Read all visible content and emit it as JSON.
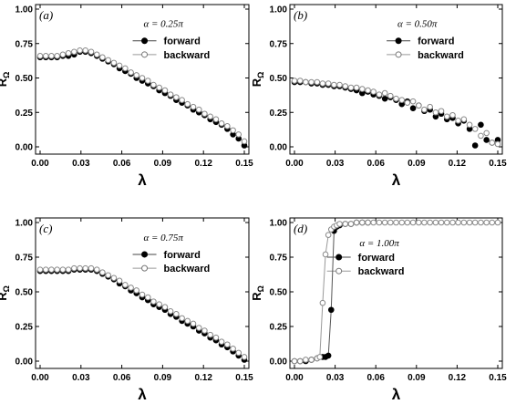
{
  "figure": {
    "legend_labels": [
      "forward",
      "backward"
    ],
    "x_tick_labels": [
      "0.00",
      "0.03",
      "0.06",
      "0.09",
      "0.12",
      "0.15"
    ],
    "y_tick_labels": [
      "0.00",
      "0.25",
      "0.50",
      "0.75",
      "1.00"
    ],
    "xlabel": "λ",
    "ylabel_main": "R",
    "ylabel_sub": "Ω"
  },
  "chart_data": [
    {
      "type": "scatter",
      "panel_label": "(a)",
      "alpha_label": "α = 0.25π",
      "xlabel": "λ",
      "ylabel": "RΩ",
      "xlim": [
        0,
        0.15
      ],
      "ylim": [
        0,
        1
      ],
      "legend_position": "top-right",
      "series": [
        {
          "name": "forward",
          "marker": "filled-circle",
          "x": [
            0.0,
            0.0042,
            0.0083,
            0.0125,
            0.0167,
            0.0208,
            0.025,
            0.0292,
            0.0333,
            0.0375,
            0.0417,
            0.0458,
            0.05,
            0.0542,
            0.0583,
            0.0625,
            0.0667,
            0.0708,
            0.075,
            0.0792,
            0.0833,
            0.0875,
            0.0917,
            0.0958,
            0.1,
            0.1042,
            0.1083,
            0.1125,
            0.1167,
            0.1208,
            0.125,
            0.1292,
            0.1333,
            0.1375,
            0.1417,
            0.1458,
            0.15
          ],
          "y": [
            0.65,
            0.65,
            0.65,
            0.65,
            0.66,
            0.66,
            0.67,
            0.69,
            0.69,
            0.68,
            0.66,
            0.64,
            0.62,
            0.6,
            0.57,
            0.55,
            0.53,
            0.5,
            0.48,
            0.46,
            0.44,
            0.41,
            0.39,
            0.37,
            0.34,
            0.32,
            0.3,
            0.27,
            0.25,
            0.23,
            0.2,
            0.18,
            0.16,
            0.13,
            0.09,
            0.06,
            0.01
          ]
        },
        {
          "name": "backward",
          "marker": "open-circle",
          "x": [
            0.0,
            0.0042,
            0.0083,
            0.0125,
            0.0167,
            0.0208,
            0.025,
            0.0292,
            0.0333,
            0.0375,
            0.0417,
            0.0458,
            0.05,
            0.0542,
            0.0583,
            0.0625,
            0.0667,
            0.0708,
            0.075,
            0.0792,
            0.0833,
            0.0875,
            0.0917,
            0.0958,
            0.1,
            0.1042,
            0.1083,
            0.1125,
            0.1167,
            0.1208,
            0.125,
            0.1292,
            0.1333,
            0.1375,
            0.1417,
            0.1458,
            0.15
          ],
          "y": [
            0.66,
            0.66,
            0.66,
            0.66,
            0.67,
            0.68,
            0.69,
            0.7,
            0.7,
            0.69,
            0.67,
            0.65,
            0.63,
            0.61,
            0.59,
            0.57,
            0.54,
            0.52,
            0.5,
            0.48,
            0.45,
            0.43,
            0.41,
            0.38,
            0.36,
            0.34,
            0.31,
            0.29,
            0.27,
            0.24,
            0.22,
            0.2,
            0.17,
            0.15,
            0.12,
            0.09,
            0.04
          ]
        }
      ]
    },
    {
      "type": "scatter",
      "panel_label": "(b)",
      "alpha_label": "α = 0.50π",
      "xlabel": "λ",
      "ylabel": "RΩ",
      "xlim": [
        0,
        0.15
      ],
      "ylim": [
        0,
        1
      ],
      "legend_position": "top-right",
      "series": [
        {
          "name": "forward",
          "marker": "filled-circle",
          "x": [
            0.0,
            0.0042,
            0.0083,
            0.0125,
            0.0167,
            0.0208,
            0.025,
            0.0292,
            0.0333,
            0.0375,
            0.0417,
            0.0458,
            0.05,
            0.0542,
            0.0583,
            0.0625,
            0.0667,
            0.0708,
            0.075,
            0.0792,
            0.0833,
            0.0875,
            0.0917,
            0.0958,
            0.1,
            0.1042,
            0.1083,
            0.1125,
            0.1167,
            0.1208,
            0.125,
            0.1292,
            0.1333,
            0.1375,
            0.1417,
            0.1458,
            0.15
          ],
          "y": [
            0.47,
            0.47,
            0.47,
            0.46,
            0.46,
            0.45,
            0.45,
            0.44,
            0.44,
            0.43,
            0.42,
            0.41,
            0.39,
            0.4,
            0.38,
            0.37,
            0.35,
            0.36,
            0.34,
            0.31,
            0.33,
            0.28,
            0.3,
            0.26,
            0.27,
            0.22,
            0.24,
            0.2,
            0.21,
            0.17,
            0.19,
            0.13,
            0.01,
            0.16,
            0.05,
            0.03,
            0.05
          ]
        },
        {
          "name": "backward",
          "marker": "open-circle",
          "x": [
            0.0,
            0.0042,
            0.0083,
            0.0125,
            0.0167,
            0.0208,
            0.025,
            0.0292,
            0.0333,
            0.0375,
            0.0417,
            0.0458,
            0.05,
            0.0542,
            0.0583,
            0.0625,
            0.0667,
            0.0708,
            0.075,
            0.0792,
            0.0833,
            0.0875,
            0.0917,
            0.0958,
            0.1,
            0.1042,
            0.1083,
            0.1125,
            0.1167,
            0.1208,
            0.125,
            0.1292,
            0.1333,
            0.1375,
            0.1417,
            0.1458,
            0.15
          ],
          "y": [
            0.48,
            0.48,
            0.47,
            0.47,
            0.47,
            0.46,
            0.46,
            0.45,
            0.45,
            0.44,
            0.43,
            0.43,
            0.42,
            0.41,
            0.4,
            0.38,
            0.39,
            0.37,
            0.35,
            0.34,
            0.32,
            0.33,
            0.3,
            0.27,
            0.29,
            0.25,
            0.26,
            0.22,
            0.23,
            0.19,
            0.2,
            0.16,
            0.13,
            0.08,
            0.1,
            0.03,
            0.02
          ]
        }
      ]
    },
    {
      "type": "scatter",
      "panel_label": "(c)",
      "alpha_label": "α = 0.75π",
      "xlabel": "λ",
      "ylabel": "RΩ",
      "xlim": [
        0,
        0.15
      ],
      "ylim": [
        0,
        1
      ],
      "legend_position": "top-right",
      "series": [
        {
          "name": "forward",
          "marker": "filled-circle",
          "x": [
            0.0,
            0.0042,
            0.0083,
            0.0125,
            0.0167,
            0.0208,
            0.025,
            0.0292,
            0.0333,
            0.0375,
            0.0417,
            0.0458,
            0.05,
            0.0542,
            0.0583,
            0.0625,
            0.0667,
            0.0708,
            0.075,
            0.0792,
            0.0833,
            0.0875,
            0.0917,
            0.0958,
            0.1,
            0.1042,
            0.1083,
            0.1125,
            0.1167,
            0.1208,
            0.125,
            0.1292,
            0.1333,
            0.1375,
            0.1417,
            0.1458,
            0.15
          ],
          "y": [
            0.65,
            0.65,
            0.65,
            0.65,
            0.65,
            0.65,
            0.66,
            0.66,
            0.66,
            0.66,
            0.65,
            0.63,
            0.61,
            0.59,
            0.56,
            0.54,
            0.51,
            0.49,
            0.46,
            0.44,
            0.41,
            0.39,
            0.37,
            0.34,
            0.32,
            0.29,
            0.27,
            0.25,
            0.22,
            0.2,
            0.17,
            0.15,
            0.12,
            0.1,
            0.07,
            0.04,
            0.01
          ]
        },
        {
          "name": "backward",
          "marker": "open-circle",
          "x": [
            0.0,
            0.0042,
            0.0083,
            0.0125,
            0.0167,
            0.0208,
            0.025,
            0.0292,
            0.0333,
            0.0375,
            0.0417,
            0.0458,
            0.05,
            0.0542,
            0.0583,
            0.0625,
            0.0667,
            0.0708,
            0.075,
            0.0792,
            0.0833,
            0.0875,
            0.0917,
            0.0958,
            0.1,
            0.1042,
            0.1083,
            0.1125,
            0.1167,
            0.1208,
            0.125,
            0.1292,
            0.1333,
            0.1375,
            0.1417,
            0.1458,
            0.15
          ],
          "y": [
            0.66,
            0.66,
            0.66,
            0.66,
            0.66,
            0.66,
            0.67,
            0.67,
            0.67,
            0.67,
            0.66,
            0.64,
            0.62,
            0.6,
            0.58,
            0.55,
            0.53,
            0.51,
            0.48,
            0.46,
            0.43,
            0.41,
            0.39,
            0.36,
            0.34,
            0.31,
            0.29,
            0.27,
            0.24,
            0.22,
            0.19,
            0.17,
            0.14,
            0.12,
            0.09,
            0.06,
            0.03
          ]
        }
      ]
    },
    {
      "type": "line",
      "panel_label": "(d)",
      "alpha_label": "α = 1.00π",
      "xlabel": "λ",
      "ylabel": "RΩ",
      "xlim": [
        0,
        0.15
      ],
      "ylim": [
        0,
        1
      ],
      "legend_position": "center-right",
      "series": [
        {
          "name": "forward",
          "marker": "filled-circle",
          "line_color": "#555555",
          "x": [
            0.0,
            0.0042,
            0.0083,
            0.0125,
            0.0167,
            0.0208,
            0.0229,
            0.025,
            0.0271,
            0.0292,
            0.0312,
            0.0333,
            0.0375,
            0.0417,
            0.0458,
            0.05,
            0.0542
          ],
          "y": [
            0.0,
            0.0,
            0.0,
            0.01,
            0.02,
            0.03,
            0.03,
            0.04,
            0.37,
            0.94,
            0.97,
            0.98,
            0.99,
            0.99,
            1.0,
            1.0,
            1.0
          ]
        },
        {
          "name": "backward",
          "marker": "open-circle",
          "line_color": "#999999",
          "x": [
            0.0,
            0.0042,
            0.0083,
            0.0125,
            0.0167,
            0.0187,
            0.0208,
            0.0229,
            0.025,
            0.0271,
            0.0292,
            0.0312,
            0.0333,
            0.0375,
            0.0417,
            0.0458,
            0.05,
            0.0542,
            0.0583,
            0.0625,
            0.0667,
            0.0708,
            0.075,
            0.0792,
            0.0833,
            0.0875,
            0.0917,
            0.0958,
            0.1,
            0.1042,
            0.1083,
            0.1125,
            0.1167,
            0.1208,
            0.125,
            0.1292,
            0.1333,
            0.1375,
            0.1417,
            0.1458,
            0.15
          ],
          "y": [
            0.0,
            0.0,
            0.01,
            0.01,
            0.02,
            0.03,
            0.42,
            0.77,
            0.91,
            0.95,
            0.97,
            0.98,
            0.99,
            0.99,
            0.99,
            1.0,
            1.0,
            1.0,
            1.0,
            1.0,
            1.0,
            1.0,
            1.0,
            1.0,
            1.0,
            1.0,
            1.0,
            1.0,
            1.0,
            1.0,
            1.0,
            1.0,
            1.0,
            1.0,
            1.0,
            1.0,
            1.0,
            1.0,
            1.0,
            1.0,
            1.0
          ]
        }
      ]
    }
  ]
}
